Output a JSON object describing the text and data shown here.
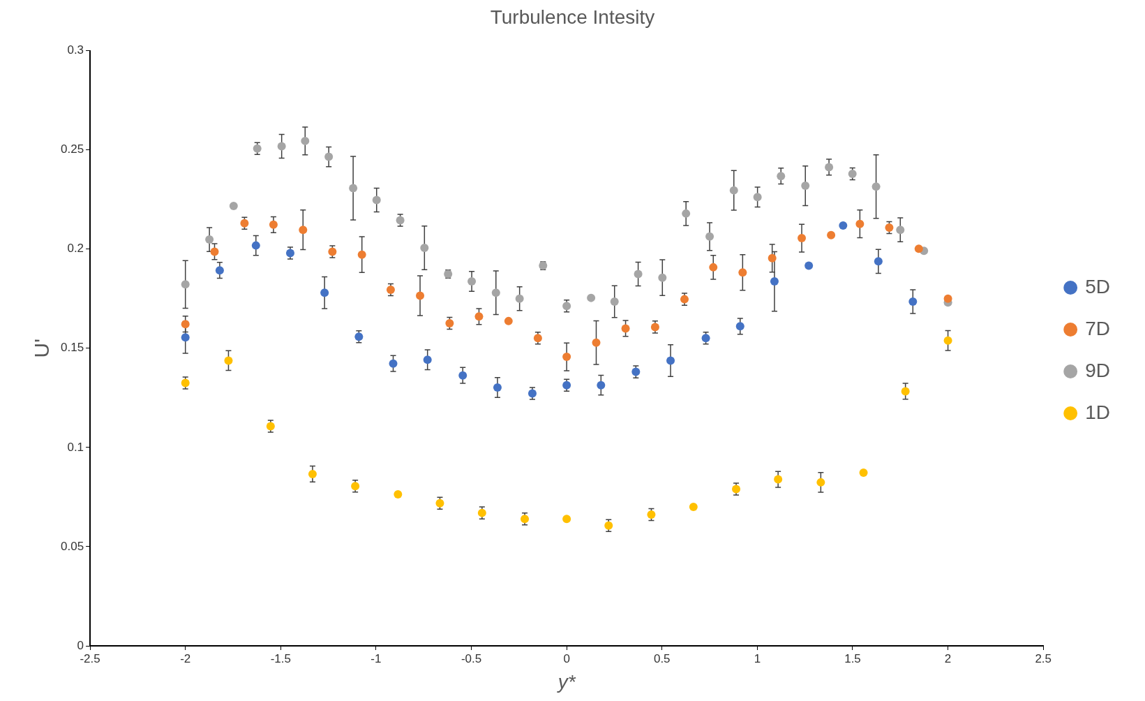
{
  "chart_data": {
    "type": "scatter",
    "title": "Turbulence Intesity",
    "xlabel": "y*",
    "ylabel": "U'",
    "xlim": [
      -2.5,
      2.5
    ],
    "xticks": [
      -2.5,
      -2,
      -1.5,
      -1,
      -0.5,
      0,
      0.5,
      1,
      1.5,
      2,
      2.5
    ],
    "ylim": [
      0,
      0.3
    ],
    "yticks": [
      0,
      0.05,
      0.1,
      0.15,
      0.2,
      0.25,
      0.3
    ],
    "grid": false,
    "legend": "right",
    "marker": "circle",
    "series": [
      {
        "name": "5D",
        "color": "#4472c4",
        "x": [
          -2,
          -1.82,
          -1.63,
          -1.45,
          -1.27,
          -1.09,
          -0.91,
          -0.73,
          -0.545,
          -0.363,
          -0.18,
          0,
          0.18,
          0.363,
          0.545,
          0.73,
          0.91,
          1.09,
          1.27,
          1.45,
          1.635,
          1.816
        ],
        "values": [
          0.1555,
          0.1893,
          0.2018,
          0.198,
          0.178,
          0.1558,
          0.1423,
          0.1442,
          0.1363,
          0.1302,
          0.1272,
          0.1314,
          0.1314,
          0.1381,
          0.1438,
          0.1551,
          0.1611,
          0.1837,
          0.1916,
          0.2119,
          0.1938,
          0.1735
        ],
        "errors": [
          0.008,
          0.004,
          0.005,
          0.003,
          0.008,
          0.003,
          0.004,
          0.005,
          0.004,
          0.005,
          0.003,
          0.003,
          0.005,
          0.003,
          0.008,
          0.003,
          0.004,
          0.015,
          null,
          null,
          0.006,
          0.006
        ]
      },
      {
        "name": "7D",
        "color": "#ed7d31",
        "x": [
          -2,
          -1.847,
          -1.69,
          -1.538,
          -1.383,
          -1.229,
          -1.074,
          -0.923,
          -0.769,
          -0.614,
          -0.46,
          -0.305,
          -0.151,
          0,
          0.155,
          0.309,
          0.464,
          0.618,
          0.769,
          0.923,
          1.078,
          1.233,
          1.387,
          1.538,
          1.692,
          1.847,
          2
        ],
        "values": [
          0.1622,
          0.1987,
          0.213,
          0.2123,
          0.2097,
          0.1987,
          0.1972,
          0.1795,
          0.1765,
          0.1626,
          0.166,
          0.1637,
          0.1551,
          0.1457,
          0.1528,
          0.16,
          0.1607,
          0.1747,
          0.1908,
          0.1882,
          0.1954,
          0.2055,
          0.207,
          0.2127,
          0.2108,
          0.2002,
          0.175
        ],
        "errors": [
          0.004,
          0.004,
          0.003,
          0.004,
          0.01,
          0.003,
          0.009,
          0.003,
          0.01,
          0.003,
          0.004,
          null,
          0.003,
          0.007,
          0.011,
          0.004,
          0.003,
          0.003,
          0.006,
          0.009,
          0.007,
          0.007,
          null,
          0.007,
          0.003,
          null,
          null
        ]
      },
      {
        "name": "9D",
        "color": "#a5a5a5",
        "x": [
          -2,
          -1.874,
          -1.747,
          -1.623,
          -1.495,
          -1.372,
          -1.248,
          -1.12,
          -0.997,
          -0.873,
          -0.746,
          -0.622,
          -0.498,
          -0.371,
          -0.247,
          -0.124,
          0,
          0.128,
          0.251,
          0.375,
          0.502,
          0.626,
          0.75,
          0.877,
          1.001,
          1.124,
          1.252,
          1.376,
          1.499,
          1.623,
          1.75,
          1.874,
          2
        ],
        "values": [
          0.1822,
          0.2048,
          0.2217,
          0.2507,
          0.2518,
          0.2545,
          0.2465,
          0.2307,
          0.2247,
          0.2145,
          0.2006,
          0.1874,
          0.1837,
          0.178,
          0.175,
          0.1916,
          0.1713,
          0.1754,
          0.1735,
          0.1874,
          0.1856,
          0.2179,
          0.2063,
          0.2296,
          0.2262,
          0.2368,
          0.2319,
          0.2413,
          0.2379,
          0.2315,
          0.2097,
          0.1991,
          0.1731
        ],
        "errors": [
          0.012,
          0.006,
          null,
          0.003,
          0.006,
          0.007,
          0.005,
          0.016,
          0.006,
          0.003,
          0.011,
          0.002,
          0.005,
          0.011,
          0.006,
          0.002,
          0.003,
          null,
          0.008,
          0.006,
          0.009,
          0.006,
          0.007,
          0.01,
          0.005,
          0.004,
          0.01,
          0.004,
          0.003,
          0.016,
          0.006,
          null,
          null
        ]
      },
      {
        "name": "1D",
        "color": "#ffc000",
        "x": [
          -2,
          -1.774,
          -1.553,
          -1.333,
          -1.109,
          -0.885,
          -0.665,
          -0.444,
          -0.22,
          0,
          0.22,
          0.444,
          0.665,
          0.889,
          1.109,
          1.333,
          1.557,
          1.777,
          2
        ],
        "values": [
          0.1325,
          0.1438,
          0.1107,
          0.0866,
          0.0805,
          0.0764,
          0.0719,
          0.067,
          0.064,
          0.064,
          0.0606,
          0.0662,
          0.07,
          0.079,
          0.0839,
          0.0824,
          0.0873,
          0.1283,
          0.1539
        ],
        "errors": [
          0.003,
          0.005,
          0.003,
          0.004,
          0.003,
          null,
          0.003,
          0.003,
          0.003,
          null,
          0.003,
          0.003,
          null,
          0.003,
          0.004,
          0.005,
          null,
          0.004,
          0.005
        ]
      }
    ]
  }
}
